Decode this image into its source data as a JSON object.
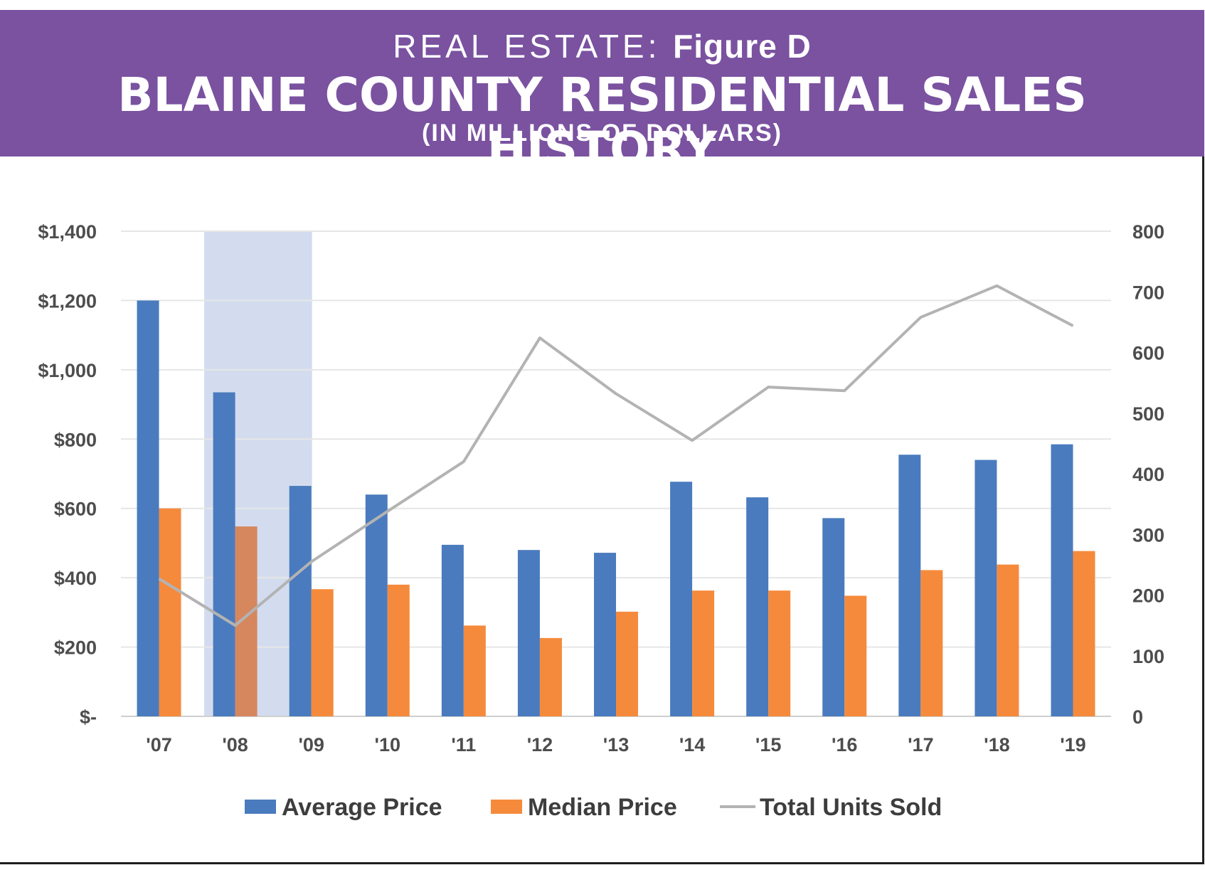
{
  "header": {
    "kicker": "REAL ESTATE:",
    "figure": "Figure D",
    "title": "BLAINE COUNTY RESIDENTIAL SALES HISTORY",
    "subtitle": "(IN MILLIONS OF DOLLARS)"
  },
  "colors": {
    "banner": "#7a52a0",
    "average": "#4a7bbe",
    "median": "#f58a3c",
    "median_highlight": "#d6875e",
    "units_line": "#b3b3b3",
    "highlight_band": "#d3dcef",
    "grid": "#e6e6e6"
  },
  "chart_data": {
    "type": "bar",
    "categories": [
      "'07",
      "'08",
      "'09",
      "'10",
      "'11",
      "'12",
      "'13",
      "'14",
      "'15",
      "'16",
      "'17",
      "'18",
      "'19"
    ],
    "series": [
      {
        "name": "Average Price",
        "type": "bar",
        "axis": "left",
        "values": [
          1200,
          935,
          665,
          640,
          495,
          480,
          472,
          677,
          632,
          572,
          755,
          740,
          785
        ]
      },
      {
        "name": "Median Price",
        "type": "bar",
        "axis": "left",
        "values": [
          600,
          548,
          367,
          380,
          262,
          226,
          302,
          363,
          363,
          348,
          422,
          438,
          477
        ]
      },
      {
        "name": "Total Units Sold",
        "type": "line",
        "axis": "right",
        "values": [
          227,
          150,
          255,
          338,
          420,
          624,
          532,
          455,
          543,
          537,
          658,
          710,
          644
        ]
      }
    ],
    "y_left": {
      "ylim": [
        0,
        1400
      ],
      "ticks": [
        0,
        200,
        400,
        600,
        800,
        1000,
        1200,
        1400
      ],
      "tick_labels": [
        "$-",
        "$200",
        "$400",
        "$600",
        "$800",
        "$1,000",
        "$1,200",
        "$1,400"
      ]
    },
    "y_right": {
      "ylim": [
        0,
        800
      ],
      "ticks": [
        0,
        100,
        200,
        300,
        400,
        500,
        600,
        700,
        800
      ],
      "tick_labels": [
        "0",
        "100",
        "200",
        "300",
        "400",
        "500",
        "600",
        "700",
        "800"
      ]
    },
    "highlight": {
      "categories": [
        "'08",
        "'09"
      ],
      "note": "shaded band spans from between '07/'08 to the '09 bars"
    },
    "grid": true,
    "legend": {
      "position": "bottom",
      "entries": [
        "Average Price",
        "Median Price",
        "Total Units Sold"
      ]
    }
  }
}
